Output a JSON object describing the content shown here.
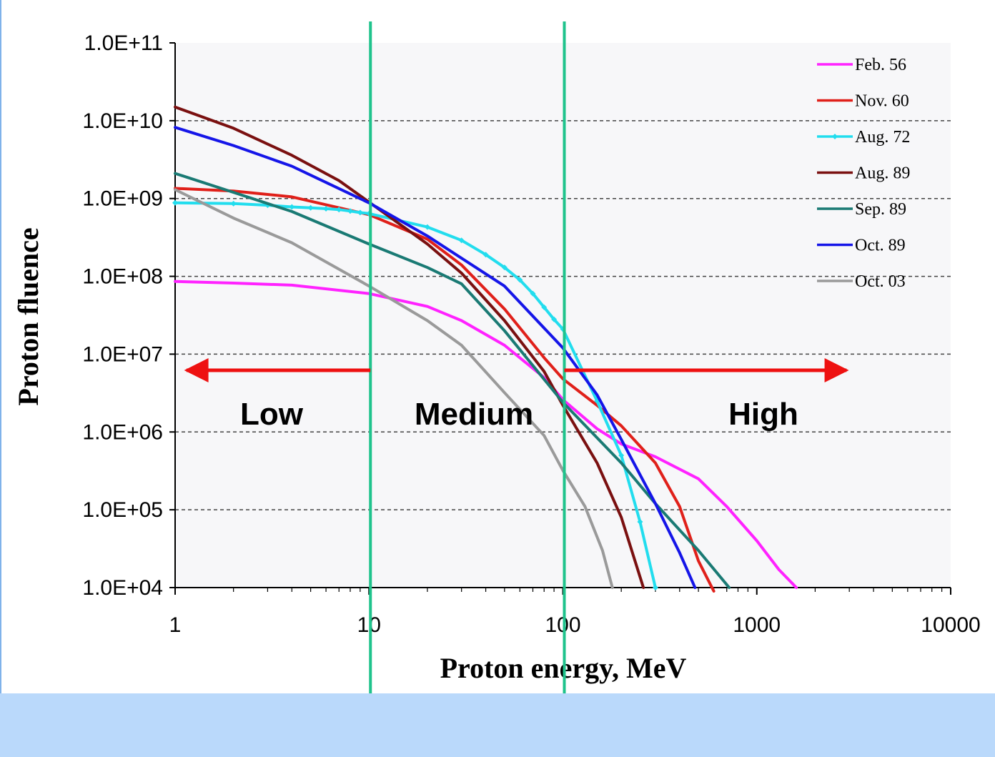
{
  "chart_data": {
    "type": "line",
    "xlabel": "Proton energy, MeV",
    "ylabel": "Proton fluence",
    "xscale": "log",
    "yscale": "log",
    "xlim": [
      1,
      10000
    ],
    "ylim": [
      10000,
      100000000000
    ],
    "x_ticks": [
      "1",
      "10",
      "100",
      "1000",
      "10000"
    ],
    "y_ticks": [
      "1.0E+04",
      "1.0E+05",
      "1.0E+06",
      "1.0E+07",
      "1.0E+08",
      "1.0E+09",
      "1.0E+10",
      "1.0E+11"
    ],
    "grid": "horizontal dashed",
    "legend_position": "top-right",
    "series": [
      {
        "name": "Feb. 56",
        "color": "#ff22ff",
        "marker": "none",
        "points": [
          [
            1,
            86000000
          ],
          [
            2,
            82000000
          ],
          [
            4,
            77000000
          ],
          [
            10,
            60000000
          ],
          [
            20,
            41000000
          ],
          [
            30,
            27000000
          ],
          [
            50,
            13000000
          ],
          [
            80,
            5000000
          ],
          [
            100,
            2600000
          ],
          [
            150,
            1100000
          ],
          [
            200,
            700000
          ],
          [
            300,
            480000
          ],
          [
            500,
            250000
          ],
          [
            700,
            110000
          ],
          [
            1000,
            40000
          ],
          [
            1300,
            17000
          ],
          [
            1600,
            10000
          ]
        ]
      },
      {
        "name": "Nov. 60",
        "color": "#e0201a",
        "marker": "none",
        "points": [
          [
            1,
            1350000000
          ],
          [
            2,
            1250000000
          ],
          [
            4,
            1050000000
          ],
          [
            10,
            620000000
          ],
          [
            20,
            300000000
          ],
          [
            30,
            140000000
          ],
          [
            50,
            38000000
          ],
          [
            80,
            9000000
          ],
          [
            100,
            4800000
          ],
          [
            150,
            2200000
          ],
          [
            200,
            1200000
          ],
          [
            300,
            400000
          ],
          [
            400,
            110000
          ],
          [
            500,
            22000
          ],
          [
            600,
            9000
          ]
        ]
      },
      {
        "name": "Aug. 72",
        "color": "#22ddee",
        "marker": "diamond",
        "points": [
          [
            1,
            880000000
          ],
          [
            2,
            860000000
          ],
          [
            3,
            820000000
          ],
          [
            4,
            780000000
          ],
          [
            5,
            760000000
          ],
          [
            6,
            740000000
          ],
          [
            7,
            720000000
          ],
          [
            8,
            690000000
          ],
          [
            9,
            660000000
          ],
          [
            10,
            640000000
          ],
          [
            20,
            430000000
          ],
          [
            30,
            290000000
          ],
          [
            40,
            190000000
          ],
          [
            50,
            130000000
          ],
          [
            60,
            90000000
          ],
          [
            70,
            60000000
          ],
          [
            80,
            40000000
          ],
          [
            90,
            28000000
          ],
          [
            100,
            21000000
          ],
          [
            150,
            2500000
          ],
          [
            200,
            500000
          ],
          [
            250,
            70000
          ],
          [
            300,
            10000
          ]
        ]
      },
      {
        "name": "Aug. 89",
        "color": "#7a1010",
        "marker": "none",
        "points": [
          [
            1,
            15000000000
          ],
          [
            2,
            8000000000
          ],
          [
            4,
            3600000000
          ],
          [
            7,
            1700000000
          ],
          [
            10,
            900000000
          ],
          [
            20,
            260000000
          ],
          [
            30,
            110000000
          ],
          [
            50,
            27000000
          ],
          [
            80,
            6000000
          ],
          [
            100,
            2200000
          ],
          [
            150,
            400000
          ],
          [
            200,
            80000
          ],
          [
            260,
            10000
          ]
        ]
      },
      {
        "name": "Sep. 89",
        "color": "#1a7a74",
        "marker": "none",
        "points": [
          [
            1,
            2100000000
          ],
          [
            2,
            1200000000
          ],
          [
            4,
            680000000
          ],
          [
            10,
            260000000
          ],
          [
            20,
            130000000
          ],
          [
            30,
            80000000
          ],
          [
            50,
            20000000
          ],
          [
            100,
            2400000
          ],
          [
            200,
            400000
          ],
          [
            300,
            120000
          ],
          [
            500,
            30000
          ],
          [
            720,
            10000
          ]
        ]
      },
      {
        "name": "Oct. 89",
        "color": "#1515e8",
        "marker": "none",
        "points": [
          [
            1,
            8200000000
          ],
          [
            2,
            4800000000
          ],
          [
            4,
            2600000000
          ],
          [
            10,
            880000000
          ],
          [
            20,
            330000000
          ],
          [
            50,
            75000000
          ],
          [
            100,
            12000000
          ],
          [
            150,
            3000000
          ],
          [
            200,
            800000
          ],
          [
            300,
            120000
          ],
          [
            400,
            28000
          ],
          [
            480,
            10000
          ]
        ]
      },
      {
        "name": "Oct. 03",
        "color": "#9a9a9a",
        "marker": "none",
        "points": [
          [
            1,
            1300000000
          ],
          [
            2,
            560000000
          ],
          [
            4,
            270000000
          ],
          [
            10,
            75000000
          ],
          [
            20,
            27000000
          ],
          [
            30,
            13000000
          ],
          [
            50,
            3200000
          ],
          [
            80,
            900000
          ],
          [
            100,
            320000
          ],
          [
            130,
            110000
          ],
          [
            160,
            30000
          ],
          [
            180,
            10000
          ]
        ]
      }
    ],
    "region_boundaries_x": [
      10,
      100
    ],
    "regions": [
      {
        "label": "Low",
        "arrow_from_x": 10,
        "arrow_to_x": 1
      },
      {
        "label": "Medium"
      },
      {
        "label": "High",
        "arrow_from_x": 100,
        "arrow_to_x": 3000
      }
    ]
  }
}
